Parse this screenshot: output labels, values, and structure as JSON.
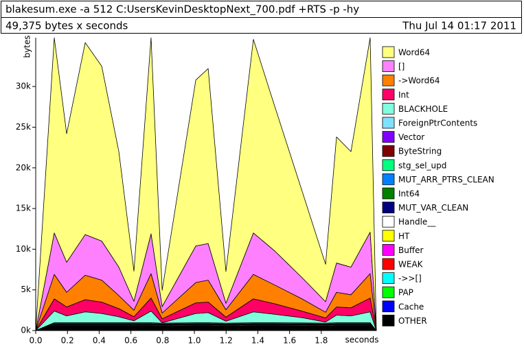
{
  "chart_data": {
    "type": "area",
    "title": "blakesum.exe -a 512 C:UsersKevinDesktopNext_700.pdf +RTS -p -hy",
    "subtitle": "49,375 bytes x seconds",
    "timestamp": "Thu Jul 14 01:17 2011",
    "xlabel": "seconds",
    "ylabel": "bytes",
    "stacked": true,
    "xlim": [
      0,
      2.147
    ],
    "ylim": [
      0,
      36000
    ],
    "xticks": [
      {
        "value": 0,
        "label": "0.0"
      },
      0.2,
      0.4,
      0.6,
      0.8,
      {
        "value": 1,
        "label": "1.0"
      },
      1.2,
      1.4,
      1.6,
      1.8
    ],
    "yticks": [
      {
        "value": 0,
        "label": "0k"
      },
      {
        "value": 5000,
        "label": "5k"
      },
      {
        "value": 10000,
        "label": "10k"
      },
      {
        "value": 15000,
        "label": "15k"
      },
      {
        "value": 20000,
        "label": "20k"
      },
      {
        "value": 25000,
        "label": "25k"
      },
      {
        "value": 30000,
        "label": "30k"
      }
    ],
    "x": [
      0,
      0.117,
      0.195,
      0.312,
      0.416,
      0.524,
      0.619,
      0.727,
      0.797,
      1.009,
      1.087,
      1.199,
      1.372,
      1.506,
      1.68,
      1.827,
      1.896,
      1.987,
      2.108,
      2.147
    ],
    "series": [
      {
        "name": "Word64",
        "color": "#ffff80",
        "values": [
          0,
          24000,
          15800,
          23600,
          21500,
          14200,
          3700,
          24100,
          2000,
          20400,
          21500,
          3900,
          23800,
          17800,
          10600,
          4600,
          15500,
          14200,
          23900,
          0
        ]
      },
      {
        "name": "[]",
        "color": "#ff80ff",
        "values": [
          0,
          5100,
          3700,
          5000,
          4800,
          3500,
          1100,
          4900,
          800,
          4500,
          4500,
          800,
          5100,
          4200,
          2600,
          1300,
          3600,
          3400,
          5100,
          0
        ]
      },
      {
        "name": "->Word64",
        "color": "#ff8000",
        "values": [
          0,
          3000,
          1800,
          3000,
          2700,
          1600,
          800,
          3000,
          700,
          2500,
          2700,
          900,
          3000,
          2300,
          1500,
          700,
          1800,
          1600,
          3000,
          0
        ]
      },
      {
        "name": "Int",
        "color": "#ff0066",
        "values": [
          0,
          1500,
          1100,
          1500,
          1400,
          1000,
          500,
          1600,
          500,
          1300,
          1300,
          500,
          1600,
          1300,
          800,
          500,
          1000,
          1000,
          1700,
          0
        ]
      },
      {
        "name": "BLACKHOLE",
        "color": "#80ffdd",
        "values": [
          0,
          1430,
          830,
          1330,
          1130,
          730,
          230,
          1430,
          30,
          1130,
          1230,
          230,
          1330,
          1030,
          630,
          130,
          930,
          830,
          1330,
          0
        ]
      },
      {
        "name": "ForeignPtrContents",
        "color": "#80e0ff",
        "values": [
          0,
          100,
          100,
          100,
          100,
          100,
          100,
          100,
          100,
          100,
          100,
          100,
          100,
          100,
          100,
          100,
          100,
          100,
          100,
          0
        ]
      },
      {
        "name": "Vector",
        "color": "#8000ff",
        "values": [
          0,
          50,
          50,
          50,
          50,
          50,
          50,
          50,
          50,
          50,
          50,
          50,
          50,
          50,
          50,
          50,
          50,
          50,
          50,
          0
        ]
      },
      {
        "name": "ByteString",
        "color": "#800000",
        "values": [
          0,
          60,
          60,
          60,
          60,
          60,
          60,
          60,
          60,
          60,
          60,
          60,
          60,
          60,
          60,
          60,
          60,
          60,
          60,
          0
        ]
      },
      {
        "name": "stg_sel_upd",
        "color": "#00ff80",
        "values": [
          0,
          30,
          30,
          30,
          30,
          30,
          30,
          30,
          30,
          30,
          30,
          30,
          30,
          30,
          30,
          30,
          30,
          30,
          30,
          0
        ]
      },
      {
        "name": "MUT_ARR_PTRS_CLEAN",
        "color": "#0080ff",
        "values": [
          0,
          100,
          100,
          100,
          100,
          100,
          100,
          100,
          100,
          100,
          100,
          100,
          100,
          100,
          100,
          100,
          100,
          100,
          100,
          0
        ]
      },
      {
        "name": "Int64",
        "color": "#008000",
        "values": [
          0,
          40,
          40,
          40,
          40,
          40,
          40,
          40,
          40,
          40,
          40,
          40,
          40,
          40,
          40,
          40,
          40,
          40,
          40,
          0
        ]
      },
      {
        "name": "MUT_VAR_CLEAN",
        "color": "#000080",
        "values": [
          0,
          40,
          40,
          40,
          40,
          40,
          40,
          40,
          40,
          40,
          40,
          40,
          40,
          40,
          40,
          40,
          40,
          40,
          40,
          0
        ]
      },
      {
        "name": "Handle__",
        "color": "#ffffff",
        "values": [
          0,
          30,
          30,
          30,
          30,
          30,
          30,
          30,
          30,
          30,
          30,
          30,
          30,
          30,
          30,
          30,
          30,
          30,
          30,
          0
        ]
      },
      {
        "name": "HT",
        "color": "#ffff00",
        "values": [
          0,
          30,
          30,
          30,
          30,
          30,
          30,
          30,
          30,
          30,
          30,
          30,
          30,
          30,
          30,
          30,
          30,
          30,
          30,
          0
        ]
      },
      {
        "name": "Buffer",
        "color": "#ff00ff",
        "values": [
          0,
          30,
          30,
          30,
          30,
          30,
          30,
          30,
          30,
          30,
          30,
          30,
          30,
          30,
          30,
          30,
          30,
          30,
          30,
          0
        ]
      },
      {
        "name": "WEAK",
        "color": "#ff0000",
        "values": [
          0,
          30,
          30,
          30,
          30,
          30,
          30,
          30,
          30,
          30,
          30,
          30,
          30,
          30,
          30,
          30,
          30,
          30,
          30,
          0
        ]
      },
      {
        "name": "->>[]",
        "color": "#00ffff",
        "values": [
          0,
          60,
          60,
          60,
          60,
          60,
          60,
          60,
          60,
          60,
          60,
          60,
          60,
          60,
          60,
          60,
          60,
          60,
          60,
          0
        ]
      },
      {
        "name": "PAP",
        "color": "#00ff00",
        "values": [
          0,
          30,
          30,
          30,
          30,
          30,
          30,
          30,
          30,
          30,
          30,
          30,
          30,
          30,
          30,
          30,
          30,
          30,
          30,
          0
        ]
      },
      {
        "name": "Cache",
        "color": "#0000ff",
        "values": [
          0,
          40,
          40,
          40,
          40,
          40,
          40,
          40,
          40,
          40,
          40,
          40,
          40,
          40,
          40,
          40,
          40,
          40,
          40,
          0
        ]
      },
      {
        "name": "OTHER",
        "color": "#000000",
        "values": [
          0,
          300,
          300,
          300,
          300,
          300,
          300,
          300,
          250,
          300,
          300,
          250,
          300,
          300,
          280,
          250,
          300,
          300,
          300,
          0
        ]
      }
    ]
  }
}
